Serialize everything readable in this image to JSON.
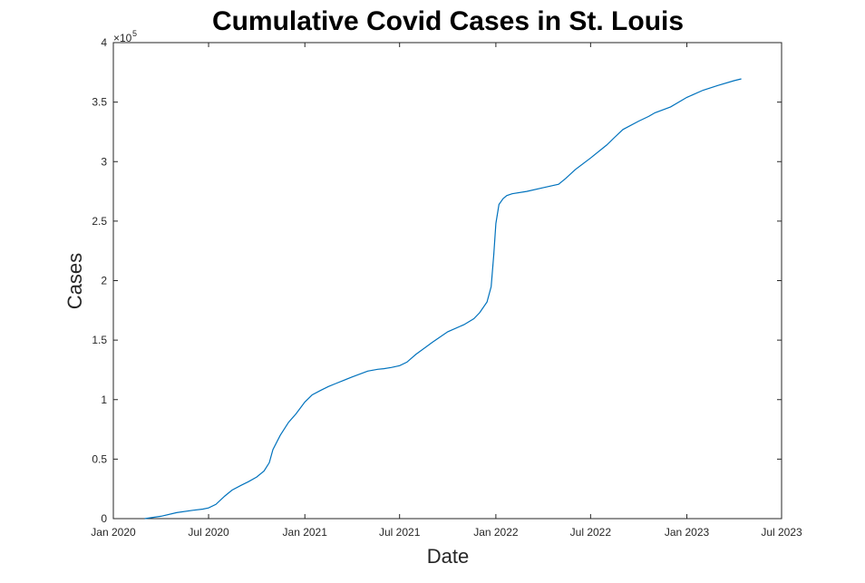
{
  "chart_data": {
    "type": "line",
    "title": "Cumulative Covid Cases in St. Louis",
    "xlabel": "Date",
    "ylabel": "Cases",
    "y_exponent_label": "×10",
    "y_exponent_power": "5",
    "xlim": [
      "2020-01-01",
      "2023-07-01"
    ],
    "ylim": [
      0,
      400000
    ],
    "x_ticks": [
      {
        "date": "2020-01-01",
        "label": "Jan 2020"
      },
      {
        "date": "2020-07-01",
        "label": "Jul 2020"
      },
      {
        "date": "2021-01-01",
        "label": "Jan 2021"
      },
      {
        "date": "2021-07-01",
        "label": "Jul 2021"
      },
      {
        "date": "2022-01-01",
        "label": "Jan 2022"
      },
      {
        "date": "2022-07-01",
        "label": "Jul 2022"
      },
      {
        "date": "2023-01-01",
        "label": "Jan 2023"
      },
      {
        "date": "2023-07-01",
        "label": "Jul 2023"
      }
    ],
    "y_ticks": [
      {
        "value": 0,
        "label": "0"
      },
      {
        "value": 50000,
        "label": "0.5"
      },
      {
        "value": 100000,
        "label": "1"
      },
      {
        "value": 150000,
        "label": "1.5"
      },
      {
        "value": 200000,
        "label": "2"
      },
      {
        "value": 250000,
        "label": "2.5"
      },
      {
        "value": 300000,
        "label": "3"
      },
      {
        "value": 350000,
        "label": "3.5"
      },
      {
        "value": 400000,
        "label": "4"
      }
    ],
    "grid": false,
    "color": "#0072bd",
    "series": [
      {
        "x": [
          "2020-03-01",
          "2020-04-01",
          "2020-05-01",
          "2020-06-01",
          "2020-06-20",
          "2020-07-01",
          "2020-07-15",
          "2020-08-01",
          "2020-08-15",
          "2020-09-01",
          "2020-09-15",
          "2020-10-01",
          "2020-10-15",
          "2020-10-25",
          "2020-11-01",
          "2020-11-15",
          "2020-12-01",
          "2020-12-15",
          "2021-01-01",
          "2021-01-15",
          "2021-02-01",
          "2021-02-15",
          "2021-03-01",
          "2021-04-01",
          "2021-05-01",
          "2021-05-20",
          "2021-06-01",
          "2021-06-15",
          "2021-07-01",
          "2021-07-15",
          "2021-08-01",
          "2021-09-01",
          "2021-10-01",
          "2021-11-01",
          "2021-11-20",
          "2021-12-01",
          "2021-12-15",
          "2021-12-23",
          "2021-12-28",
          "2022-01-01",
          "2022-01-07",
          "2022-01-15",
          "2022-01-22",
          "2022-02-01",
          "2022-03-01",
          "2022-04-01",
          "2022-05-01",
          "2022-05-15",
          "2022-06-01",
          "2022-07-01",
          "2022-08-01",
          "2022-08-15",
          "2022-09-01",
          "2022-10-01",
          "2022-10-20",
          "2022-11-01",
          "2022-12-01",
          "2023-01-01",
          "2023-02-01",
          "2023-03-01",
          "2023-04-01",
          "2023-04-15"
        ],
        "y": [
          0,
          2000,
          5000,
          7000,
          8000,
          9000,
          12000,
          19000,
          24000,
          28000,
          31000,
          35000,
          40000,
          47000,
          58000,
          70000,
          81000,
          88000,
          98000,
          104000,
          108000,
          111000,
          113500,
          119000,
          124000,
          125500,
          126000,
          127000,
          128500,
          131500,
          138000,
          148000,
          157000,
          163000,
          168000,
          173000,
          182000,
          195000,
          222000,
          248000,
          264000,
          269000,
          271500,
          273000,
          275000,
          278000,
          281000,
          286000,
          293000,
          303000,
          314000,
          320000,
          327000,
          334000,
          338000,
          341000,
          346000,
          354000,
          360000,
          364000,
          368000,
          369500
        ]
      }
    ]
  }
}
